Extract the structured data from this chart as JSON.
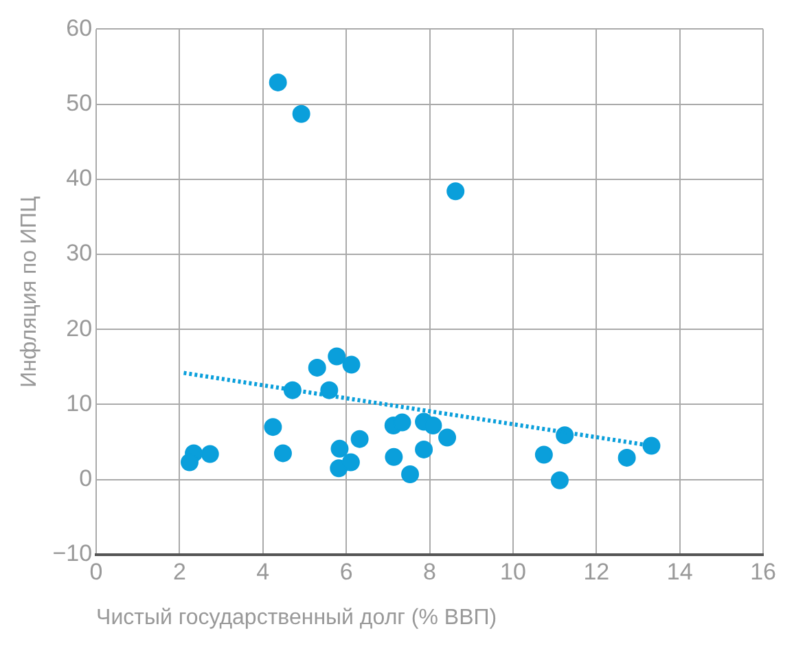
{
  "chart_data": {
    "type": "scatter",
    "xlabel": "Чистый государственный долг (% ВВП)",
    "ylabel": "Инфляция по ИПЦ",
    "xlim": [
      0,
      16
    ],
    "xticks": [
      0,
      2,
      4,
      6,
      8,
      10,
      12,
      14,
      16
    ],
    "ylim": [
      -10,
      60
    ],
    "yticks": [
      -10,
      0,
      10,
      20,
      30,
      40,
      50,
      60
    ],
    "grid": true,
    "marker": "circle",
    "series": [
      {
        "color": "#0a9fdb",
        "x": [
          2.34,
          2.24,
          2.73,
          4.24,
          4.48,
          4.71,
          5.3,
          5.77,
          6.12,
          5.59,
          5.84,
          5.82,
          6.11,
          6.32,
          7.13,
          7.34,
          7.14,
          7.53,
          7.86,
          8.08,
          7.86,
          8.42,
          11.24,
          10.74,
          11.12,
          12.73,
          13.32,
          4.36,
          4.92,
          8.62
        ],
        "values": [
          3.5,
          2.3,
          3.4,
          7.0,
          3.5,
          11.9,
          14.9,
          16.4,
          15.3,
          11.9,
          4.1,
          1.5,
          2.3,
          5.4,
          7.2,
          7.6,
          3.0,
          0.7,
          7.7,
          7.2,
          4.0,
          5.6,
          5.9,
          3.3,
          -0.1,
          2.9,
          4.5,
          52.9,
          48.7,
          38.4
        ]
      },
      {
        "type": "line",
        "color": "#0a9fdb",
        "line_style": "dotted",
        "marker": "none",
        "x": [
          2.1,
          13.2
        ],
        "values": [
          14.2,
          4.6
        ]
      }
    ]
  }
}
